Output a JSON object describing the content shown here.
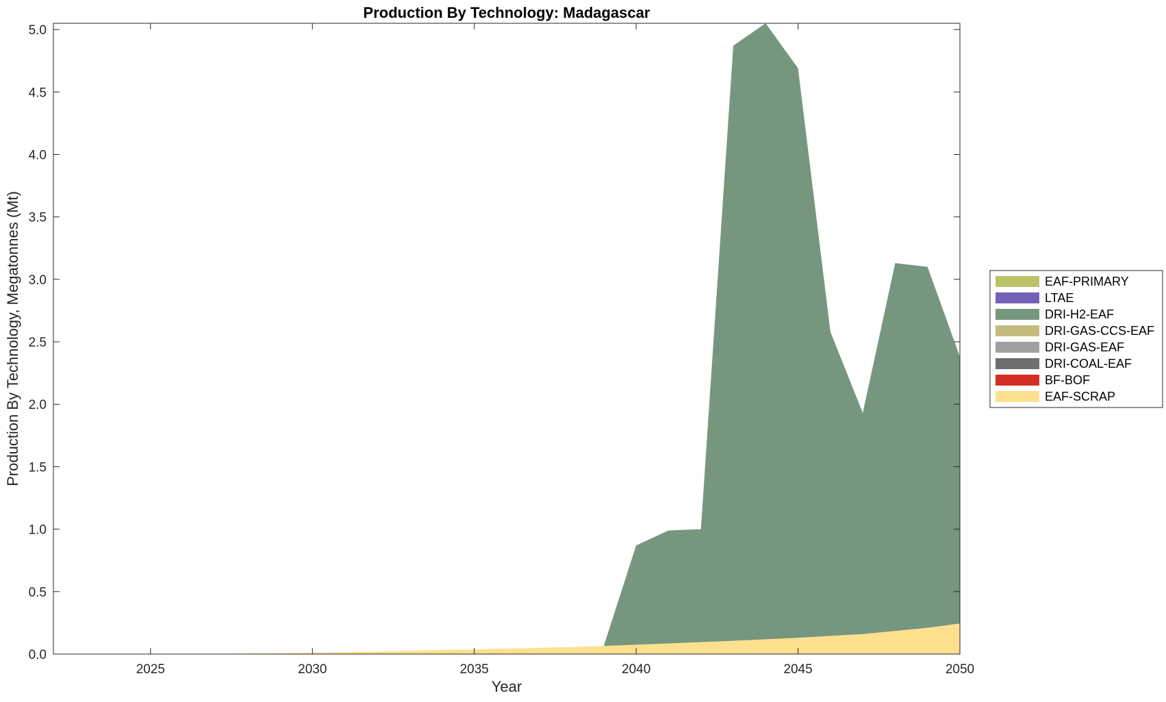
{
  "chart_data": {
    "type": "area",
    "stacked": true,
    "title": "Production By Technology: Madagascar",
    "xlabel": "Year",
    "ylabel": "Production By Technology, Megatonnes (Mt)",
    "xlim": [
      2022,
      2050
    ],
    "ylim": [
      0,
      5.05
    ],
    "xticks": [
      2025,
      2030,
      2035,
      2040,
      2045,
      2050
    ],
    "yticks": [
      0,
      0.5,
      1,
      1.5,
      2,
      2.5,
      3,
      3.5,
      4,
      4.5,
      5
    ],
    "ytick_labels": [
      "0.0",
      "0.5",
      "1.0",
      "1.5",
      "2.0",
      "2.5",
      "3.0",
      "3.5",
      "4.0",
      "4.5",
      "5.0"
    ],
    "grid": false,
    "legend_position": "outside-right",
    "x": [
      2022,
      2023,
      2024,
      2025,
      2026,
      2027,
      2028,
      2029,
      2030,
      2031,
      2032,
      2033,
      2034,
      2035,
      2036,
      2037,
      2038,
      2039,
      2040,
      2041,
      2042,
      2043,
      2044,
      2045,
      2046,
      2047,
      2048,
      2049,
      2050
    ],
    "series": [
      {
        "name": "EAF-SCRAP",
        "color": "#FFE08F",
        "values": [
          0,
          0,
          0,
          0,
          0,
          0.002,
          0.004,
          0.007,
          0.01,
          0.015,
          0.02,
          0.026,
          0.032,
          0.038,
          0.044,
          0.05,
          0.056,
          0.065,
          0.075,
          0.085,
          0.095,
          0.106,
          0.118,
          0.13,
          0.145,
          0.16,
          0.185,
          0.21,
          0.245
        ]
      },
      {
        "name": "BF-BOF",
        "color": "#D62E26",
        "values": [
          0,
          0,
          0,
          0,
          0,
          0,
          0,
          0,
          0,
          0,
          0,
          0,
          0,
          0,
          0,
          0,
          0,
          0,
          0,
          0,
          0,
          0,
          0,
          0,
          0,
          0,
          0,
          0,
          0
        ]
      },
      {
        "name": "DRI-COAL-EAF",
        "color": "#6E6E6E",
        "values": [
          0,
          0,
          0,
          0,
          0,
          0,
          0,
          0,
          0,
          0,
          0,
          0,
          0,
          0,
          0,
          0,
          0,
          0,
          0,
          0,
          0,
          0,
          0,
          0,
          0,
          0,
          0,
          0,
          0
        ]
      },
      {
        "name": "DRI-GAS-EAF",
        "color": "#A0A0A0",
        "values": [
          0,
          0,
          0,
          0,
          0,
          0,
          0,
          0,
          0,
          0,
          0,
          0,
          0,
          0,
          0,
          0,
          0,
          0,
          0,
          0,
          0,
          0,
          0,
          0,
          0,
          0,
          0,
          0,
          0
        ]
      },
      {
        "name": "DRI-GAS-CCS-EAF",
        "color": "#C4BC7E",
        "values": [
          0,
          0,
          0,
          0,
          0,
          0,
          0,
          0,
          0,
          0,
          0,
          0,
          0,
          0,
          0,
          0,
          0,
          0,
          0,
          0,
          0,
          0,
          0,
          0,
          0,
          0,
          0,
          0,
          0
        ]
      },
      {
        "name": "DRI-H2-EAF",
        "color": "#76977E",
        "values": [
          0,
          0,
          0,
          0,
          0,
          0,
          0,
          0,
          0,
          0,
          0,
          0,
          0,
          0,
          0,
          0,
          0,
          0,
          0.795,
          0.905,
          0.905,
          4.765,
          4.932,
          4.56,
          2.435,
          1.77,
          2.945,
          2.89,
          2.135
        ]
      },
      {
        "name": "LTAE",
        "color": "#7361B5",
        "values": [
          0,
          0,
          0,
          0,
          0,
          0,
          0,
          0,
          0,
          0,
          0,
          0,
          0,
          0,
          0,
          0,
          0,
          0,
          0,
          0,
          0,
          0,
          0,
          0,
          0,
          0,
          0,
          0,
          0
        ]
      },
      {
        "name": "EAF-PRIMARY",
        "color": "#BCC268",
        "values": [
          0,
          0,
          0,
          0,
          0,
          0,
          0,
          0,
          0,
          0,
          0,
          0,
          0,
          0,
          0,
          0,
          0,
          0,
          0,
          0,
          0,
          0,
          0,
          0,
          0,
          0,
          0,
          0,
          0
        ]
      }
    ],
    "legend_order": [
      "EAF-PRIMARY",
      "LTAE",
      "DRI-H2-EAF",
      "DRI-GAS-CCS-EAF",
      "DRI-GAS-EAF",
      "DRI-COAL-EAF",
      "BF-BOF",
      "EAF-SCRAP"
    ]
  }
}
